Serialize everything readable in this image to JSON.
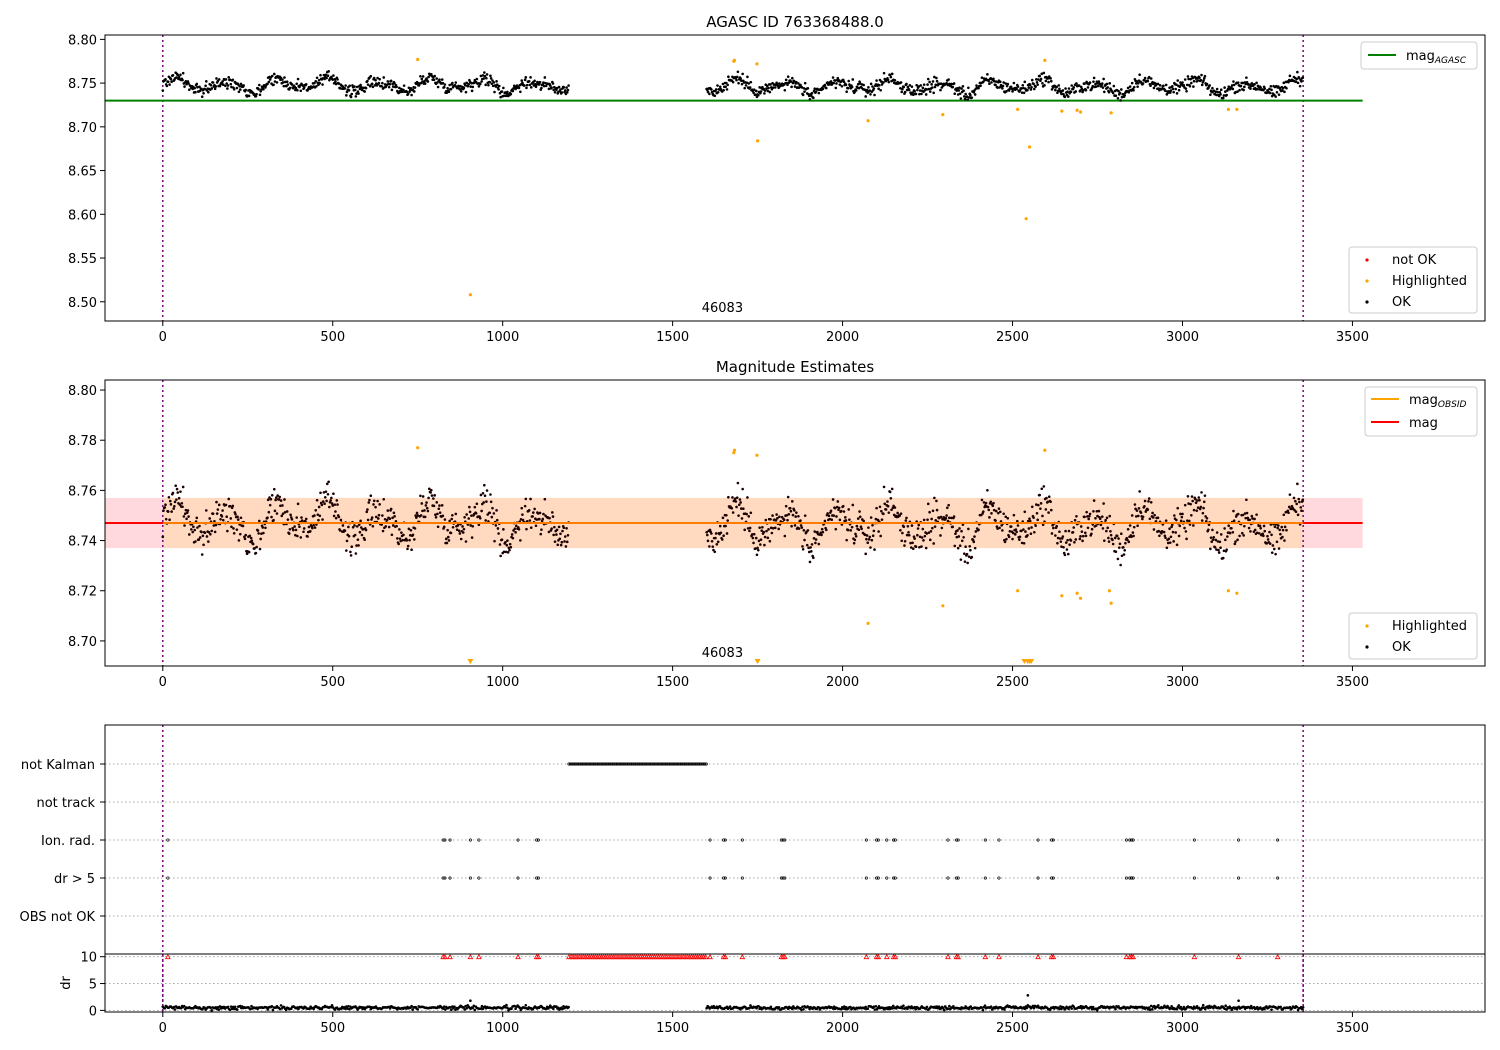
{
  "chart_data": [
    {
      "type": "scatter",
      "title": "AGASC ID 763368488.0",
      "xlim": [
        -170,
        3890
      ],
      "ylim": [
        8.478,
        8.805
      ],
      "yticks": [
        8.5,
        8.55,
        8.6,
        8.65,
        8.7,
        8.75,
        8.8
      ],
      "ytick_labels": [
        "8.50",
        "8.55",
        "8.60",
        "8.65",
        "8.70",
        "8.75",
        "8.80"
      ],
      "xticks": [
        0,
        500,
        1000,
        1500,
        2000,
        2500,
        3000,
        3500
      ],
      "xtick_labels": [
        "0",
        "500",
        "1000",
        "1500",
        "2000",
        "2500",
        "3000",
        "3500"
      ],
      "obs_bounds": [
        0,
        3355
      ],
      "obsid_label": {
        "x": 1670,
        "text": "46083"
      },
      "mag_agasc": {
        "value": 8.73,
        "x_range": [
          -170,
          3530
        ],
        "color": "#008000",
        "label": "mag",
        "label_sub": "AGASC"
      },
      "ok_segments": [
        {
          "x0": 0,
          "x1": 1195,
          "center": 8.748,
          "amplitude": 0.01,
          "period": 150,
          "scatter": 0.006,
          "step": 2
        },
        {
          "x0": 1600,
          "x1": 3355,
          "center": 8.746,
          "amplitude": 0.01,
          "period": 150,
          "scatter": 0.006,
          "step": 2
        }
      ],
      "highlighted": [
        {
          "x": 750,
          "y": 8.777
        },
        {
          "x": 905,
          "y": 8.508
        },
        {
          "x": 1680,
          "y": 8.775
        },
        {
          "x": 1682,
          "y": 8.776
        },
        {
          "x": 1748,
          "y": 8.772
        },
        {
          "x": 1750,
          "y": 8.684
        },
        {
          "x": 2075,
          "y": 8.707
        },
        {
          "x": 2295,
          "y": 8.714
        },
        {
          "x": 2515,
          "y": 8.72
        },
        {
          "x": 2540,
          "y": 8.595
        },
        {
          "x": 2550,
          "y": 8.677
        },
        {
          "x": 2595,
          "y": 8.776
        },
        {
          "x": 2645,
          "y": 8.718
        },
        {
          "x": 2690,
          "y": 8.719
        },
        {
          "x": 2700,
          "y": 8.717
        },
        {
          "x": 2790,
          "y": 8.716
        },
        {
          "x": 3135,
          "y": 8.72
        },
        {
          "x": 3160,
          "y": 8.72
        }
      ],
      "legend_line": {
        "entries": [
          {
            "label": "mag",
            "sub": "AGASC",
            "color": "#008000"
          }
        ],
        "position": "top-right"
      },
      "legend_points": {
        "entries": [
          {
            "label": "not OK",
            "color": "#ff0000"
          },
          {
            "label": "Highlighted",
            "color": "#ffa500"
          },
          {
            "label": "OK",
            "color": "#000000"
          }
        ],
        "position": "bottom-right"
      }
    },
    {
      "type": "scatter",
      "title": "Magnitude Estimates",
      "xlim": [
        -170,
        3890
      ],
      "ylim": [
        8.69,
        8.804
      ],
      "yticks": [
        8.7,
        8.72,
        8.74,
        8.76,
        8.78,
        8.8
      ],
      "ytick_labels": [
        "8.70",
        "8.72",
        "8.74",
        "8.76",
        "8.78",
        "8.80"
      ],
      "xticks": [
        0,
        500,
        1000,
        1500,
        2000,
        2500,
        3000,
        3500
      ],
      "xtick_labels": [
        "0",
        "500",
        "1000",
        "1500",
        "2000",
        "2500",
        "3000",
        "3500"
      ],
      "obs_bounds": [
        0,
        3355
      ],
      "obsid_label": {
        "x": 1670,
        "text": "46083"
      },
      "mag": {
        "value": 8.747,
        "x_range": [
          -170,
          3530
        ],
        "color": "#ff0000",
        "band": [
          8.737,
          8.757
        ],
        "band_color": "#ffc0c8"
      },
      "mag_obsid": {
        "value": 8.747,
        "x_range": [
          0,
          3355
        ],
        "color": "#ffa500",
        "band": [
          8.737,
          8.757
        ],
        "band_color": "#ffd8b8"
      },
      "highlighted": [
        {
          "x": 750,
          "y": 8.777
        },
        {
          "x": 1680,
          "y": 8.775
        },
        {
          "x": 1682,
          "y": 8.776
        },
        {
          "x": 1748,
          "y": 8.774
        },
        {
          "x": 2075,
          "y": 8.707
        },
        {
          "x": 2295,
          "y": 8.714
        },
        {
          "x": 2515,
          "y": 8.72
        },
        {
          "x": 2595,
          "y": 8.776
        },
        {
          "x": 2645,
          "y": 8.718
        },
        {
          "x": 2690,
          "y": 8.719
        },
        {
          "x": 2700,
          "y": 8.717
        },
        {
          "x": 2785,
          "y": 8.72
        },
        {
          "x": 2790,
          "y": 8.715
        },
        {
          "x": 3135,
          "y": 8.72
        },
        {
          "x": 3160,
          "y": 8.719
        }
      ],
      "offscale_below": [
        905,
        1750,
        2535,
        2545,
        2550,
        2555
      ],
      "legend_line": {
        "entries": [
          {
            "label": "mag",
            "sub": "OBSID",
            "color": "#ffa500"
          },
          {
            "label": "mag",
            "sub": "",
            "color": "#ff0000"
          }
        ],
        "position": "top-right"
      },
      "legend_points": {
        "entries": [
          {
            "label": "Highlighted",
            "color": "#ffa500"
          },
          {
            "label": "OK",
            "color": "#000000"
          }
        ],
        "position": "bottom-right"
      }
    },
    {
      "type": "scatter",
      "title": "",
      "xlim": [
        -170,
        3890
      ],
      "obs_bounds": [
        0,
        3355
      ],
      "rows": [
        "not Kalman",
        "not track",
        "Ion. rad.",
        "dr > 5",
        "OBS not OK"
      ],
      "flags": {
        "not Kalman": {
          "ranges": [
            [
              1195,
              1600
            ]
          ],
          "step": 4
        },
        "not track": {
          "ranges": [],
          "step": 4
        },
        "Ion. rad.": {
          "times": [
            15,
            825,
            830,
            845,
            905,
            930,
            1045,
            1100,
            1105,
            1610,
            1650,
            1655,
            1705,
            1820,
            1825,
            1830,
            2070,
            2100,
            2105,
            2130,
            2150,
            2155,
            2310,
            2335,
            2340,
            2420,
            2460,
            2575,
            2615,
            2620,
            2835,
            2845,
            2850,
            2855,
            3035,
            3165,
            3280
          ]
        },
        "dr > 5": {
          "times": [
            15,
            825,
            830,
            845,
            905,
            930,
            1045,
            1100,
            1105,
            1610,
            1650,
            1655,
            1705,
            1820,
            1825,
            1830,
            2070,
            2100,
            2105,
            2130,
            2150,
            2155,
            2310,
            2335,
            2340,
            2420,
            2460,
            2575,
            2615,
            2620,
            2835,
            2845,
            2850,
            2855,
            3035,
            3165,
            3280
          ]
        },
        "OBS not OK": {
          "times": []
        }
      }
    },
    {
      "type": "scatter",
      "title": "",
      "xlim": [
        -170,
        3890
      ],
      "ylim": [
        -0.3,
        10.5
      ],
      "yticks": [
        0,
        5,
        10
      ],
      "ytick_labels": [
        "0",
        "5",
        "10"
      ],
      "xticks": [
        0,
        500,
        1000,
        1500,
        2000,
        2500,
        3000,
        3500
      ],
      "xtick_labels": [
        "0",
        "500",
        "1000",
        "1500",
        "2000",
        "2500",
        "3000",
        "3500"
      ],
      "ylabel": "dr",
      "obs_bounds": [
        0,
        3355
      ],
      "dr_segments": [
        {
          "x0": 0,
          "x1": 1195,
          "base": 0.5,
          "scatter": 0.3,
          "step": 3
        },
        {
          "x0": 1600,
          "x1": 3355,
          "base": 0.5,
          "scatter": 0.3,
          "step": 3
        }
      ],
      "dr_outliers": [
        {
          "x": 905,
          "y": 1.8
        },
        {
          "x": 2545,
          "y": 2.8
        },
        {
          "x": 3165,
          "y": 1.8
        }
      ],
      "clipped_markers": {
        "y": 10,
        "color": "#ff0000",
        "ranges": [
          [
            1195,
            1600
          ]
        ],
        "step": 6
      }
    }
  ]
}
